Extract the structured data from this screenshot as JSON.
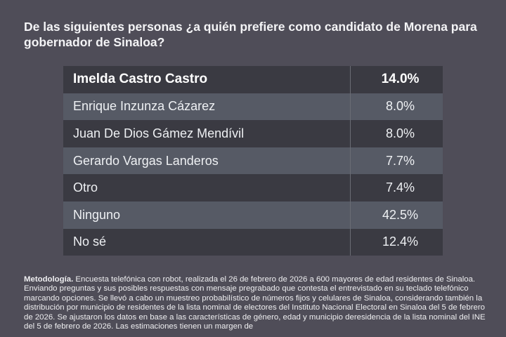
{
  "question": "De las siguientes personas ¿a quién prefiere como candidato de Morena para gobernador de Sinaloa?",
  "rows": [
    {
      "name": "Imelda Castro Castro",
      "value": "14.0%"
    },
    {
      "name": "Enrique Inzunza Cázarez",
      "value": "8.0%"
    },
    {
      "name": "Juan De Dios Gámez Mendívil",
      "value": "8.0%"
    },
    {
      "name": "Gerardo Vargas Landeros",
      "value": "7.7%"
    },
    {
      "name": "Otro",
      "value": "7.4%"
    },
    {
      "name": "Ninguno",
      "value": "42.5%"
    },
    {
      "name": "No sé",
      "value": "12.4%"
    }
  ],
  "methodology": {
    "label": "Metodología.",
    "text": " Encuesta telefónica con robot, realizada el 26 de febrero de 2026 a 600 mayores de edad residentes de Sinaloa. Enviando preguntas y sus posibles respuestas con mensaje pregrabado que contesta el entrevistado en su teclado telefónico marcando opciones. Se llevó a cabo un muestreo probabilístico de números fijos y celulares de Sinaloa, considerando también la distribución por municipio de residentes de la lista nominal de electores del Instituto Nacional Electoral en Sinaloa del 5 de febrero de 2026. Se ajustaron los datos en base a las características de género, edad y municipio deresidencia de la lista nominal del INE del 5 de febrero de 2026. Las estimaciones tienen un margen de"
  },
  "colors": {
    "background": "#4f4d58",
    "row_dark": "#3a3a42",
    "row_light": "#565a65"
  }
}
